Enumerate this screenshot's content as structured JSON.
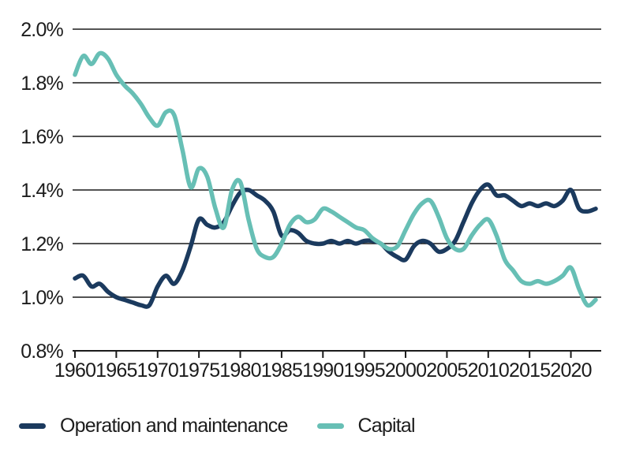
{
  "chart_data": {
    "type": "line",
    "title": "",
    "xlabel": "",
    "ylabel": "",
    "ylim": [
      0.8,
      2.0
    ],
    "xlim": [
      1960,
      2023
    ],
    "grid": true,
    "legend_position": "bottom-left",
    "yticks": [
      0.8,
      1.0,
      1.2,
      1.4,
      1.6,
      1.8,
      2.0
    ],
    "ytick_labels": [
      "0.8%",
      "1.0%",
      "1.2%",
      "1.4%",
      "1.6%",
      "1.8%",
      "2.0%"
    ],
    "xticks": [
      1960,
      1965,
      1970,
      1975,
      1980,
      1985,
      1990,
      1995,
      2000,
      2005,
      2010,
      2015,
      2020
    ],
    "xtick_labels": [
      "1960",
      "1965",
      "1970",
      "1975",
      "1980",
      "1985",
      "1990",
      "1995",
      "2000",
      "2005",
      "2010",
      "2015",
      "2020"
    ],
    "x": [
      1960,
      1961,
      1962,
      1963,
      1964,
      1965,
      1966,
      1967,
      1968,
      1969,
      1970,
      1971,
      1972,
      1973,
      1974,
      1975,
      1976,
      1977,
      1978,
      1979,
      1980,
      1981,
      1982,
      1983,
      1984,
      1985,
      1986,
      1987,
      1988,
      1989,
      1990,
      1991,
      1992,
      1993,
      1994,
      1995,
      1996,
      1997,
      1998,
      1999,
      2000,
      2001,
      2002,
      2003,
      2004,
      2005,
      2006,
      2007,
      2008,
      2009,
      2010,
      2011,
      2012,
      2013,
      2014,
      2015,
      2016,
      2017,
      2018,
      2019,
      2020,
      2021,
      2022,
      2023
    ],
    "series": [
      {
        "name": "Operation and maintenance",
        "color": "#1b3a5e",
        "values": [
          1.07,
          1.08,
          1.04,
          1.05,
          1.02,
          1.0,
          0.99,
          0.98,
          0.97,
          0.97,
          1.04,
          1.08,
          1.05,
          1.1,
          1.19,
          1.29,
          1.27,
          1.26,
          1.28,
          1.34,
          1.39,
          1.4,
          1.38,
          1.36,
          1.32,
          1.23,
          1.25,
          1.24,
          1.21,
          1.2,
          1.2,
          1.21,
          1.2,
          1.21,
          1.2,
          1.21,
          1.21,
          1.2,
          1.17,
          1.15,
          1.14,
          1.19,
          1.21,
          1.2,
          1.17,
          1.18,
          1.21,
          1.28,
          1.35,
          1.4,
          1.42,
          1.38,
          1.38,
          1.36,
          1.34,
          1.35,
          1.34,
          1.35,
          1.34,
          1.36,
          1.4,
          1.33,
          1.32,
          1.33
        ]
      },
      {
        "name": "Capital",
        "color": "#67bfb5",
        "values": [
          1.83,
          1.9,
          1.87,
          1.91,
          1.89,
          1.83,
          1.79,
          1.76,
          1.72,
          1.67,
          1.64,
          1.69,
          1.68,
          1.55,
          1.41,
          1.48,
          1.45,
          1.33,
          1.26,
          1.4,
          1.43,
          1.29,
          1.18,
          1.15,
          1.15,
          1.2,
          1.27,
          1.3,
          1.28,
          1.29,
          1.33,
          1.32,
          1.3,
          1.28,
          1.26,
          1.25,
          1.22,
          1.2,
          1.18,
          1.19,
          1.25,
          1.31,
          1.35,
          1.36,
          1.3,
          1.22,
          1.18,
          1.18,
          1.23,
          1.27,
          1.29,
          1.23,
          1.14,
          1.1,
          1.06,
          1.05,
          1.06,
          1.05,
          1.06,
          1.08,
          1.11,
          1.03,
          0.97,
          0.99
        ]
      }
    ]
  },
  "legend": {
    "items": [
      {
        "label": "Operation and maintenance",
        "color": "#1b3a5e"
      },
      {
        "label": "Capital",
        "color": "#67bfb5"
      }
    ]
  },
  "style": {
    "background": "#ffffff",
    "grid_color": "#1a1a1a",
    "text_color": "#1c1c1c"
  }
}
